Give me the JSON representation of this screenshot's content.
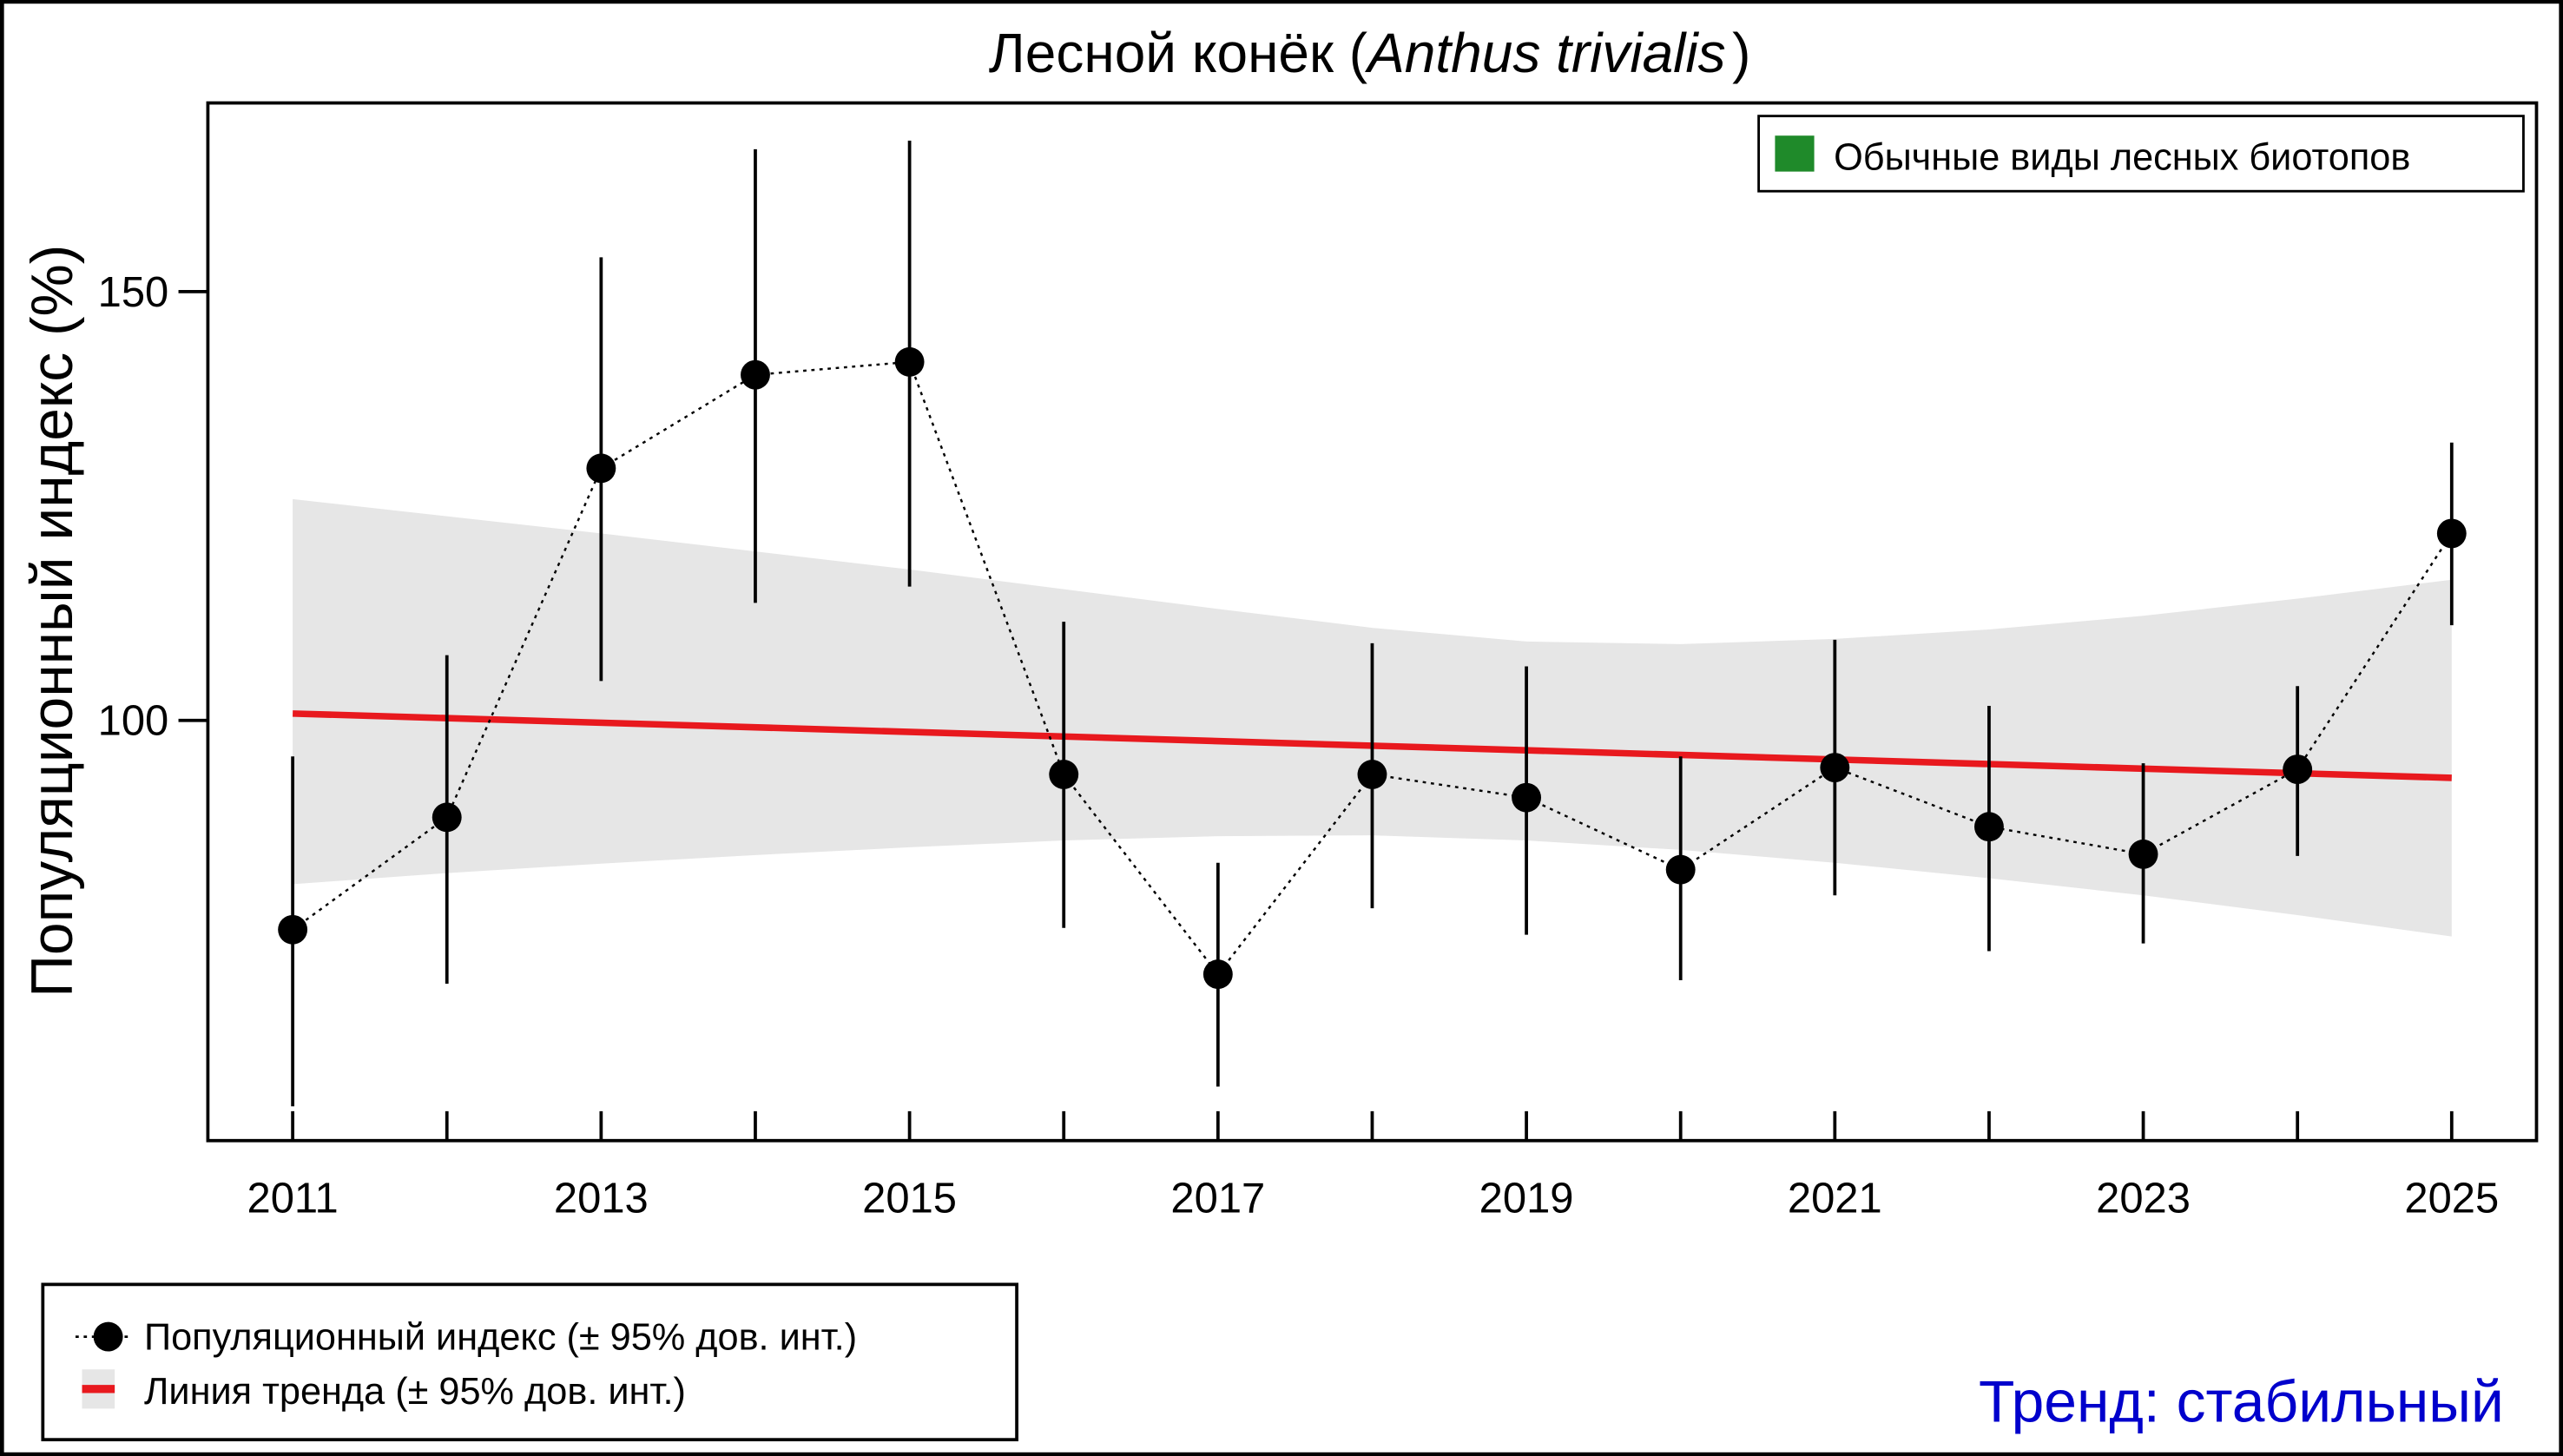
{
  "chart_data": {
    "type": "line",
    "title": "Лесной конёк (",
    "title_italic": "Anthus trivialis",
    "title_close": ")",
    "ylabel": "Популяционный индекс (%)",
    "xlabel": "",
    "xlim": [
      2010.45,
      2025.55
    ],
    "ylim": [
      51,
      172
    ],
    "yticks": [
      100,
      150
    ],
    "xticks": [
      2011,
      2012,
      2013,
      2014,
      2015,
      2016,
      2017,
      2018,
      2019,
      2020,
      2021,
      2022,
      2023,
      2024,
      2025
    ],
    "xtick_labels": [
      "2011",
      "2013",
      "2015",
      "2017",
      "2019",
      "2021",
      "2023",
      "2025"
    ],
    "grid": false,
    "index": {
      "name": "Популяционный индекс (± 95% дов. инт.)",
      "x": [
        2011,
        2012,
        2013,
        2014,
        2015,
        2016,
        2017,
        2018,
        2019,
        2020,
        2021,
        2022,
        2023,
        2024,
        2025
      ],
      "y": [
        75.6,
        88.7,
        129.4,
        140.3,
        141.8,
        93.7,
        70.4,
        93.7,
        91.0,
        82.6,
        94.5,
        87.6,
        84.4,
        94.3,
        121.8
      ],
      "ci_low": [
        55.0,
        69.3,
        104.6,
        113.7,
        115.6,
        75.8,
        57.3,
        78.1,
        75.0,
        69.7,
        79.6,
        73.1,
        74.0,
        84.2,
        111.1
      ],
      "ci_high": [
        95.8,
        107.6,
        154.0,
        166.6,
        167.6,
        111.5,
        83.4,
        109.0,
        106.3,
        95.8,
        109.4,
        101.7,
        95.0,
        104.0,
        132.4
      ]
    },
    "trend": {
      "name": "Линия тренда (± 95% дов. инт.)",
      "x": [
        2011,
        2025
      ],
      "y": [
        100.8,
        93.3
      ],
      "band_x": [
        2011,
        2012,
        2013,
        2014,
        2015,
        2016,
        2017,
        2018,
        2019,
        2020,
        2021,
        2022,
        2023,
        2024,
        2025
      ],
      "band_high": [
        125.8,
        123.8,
        121.8,
        119.7,
        117.6,
        115.3,
        113.0,
        110.8,
        109.2,
        108.9,
        109.5,
        110.6,
        112.2,
        114.2,
        116.4
      ],
      "band_low": [
        80.9,
        82.2,
        83.3,
        84.3,
        85.2,
        86.0,
        86.5,
        86.6,
        86.0,
        84.9,
        83.4,
        81.6,
        79.6,
        77.3,
        74.8
      ]
    },
    "group_legend": "Обычные виды лесных биотопов",
    "group_legend_position": "top-right",
    "series_legend_position": "bottom-left",
    "trend_label": "Тренд: стабильный",
    "colors": {
      "trend": "#e8191e",
      "band": "#e6e6e6",
      "points": "#000000",
      "group": "#1f8a2a",
      "trend_label": "#0000cc"
    }
  }
}
